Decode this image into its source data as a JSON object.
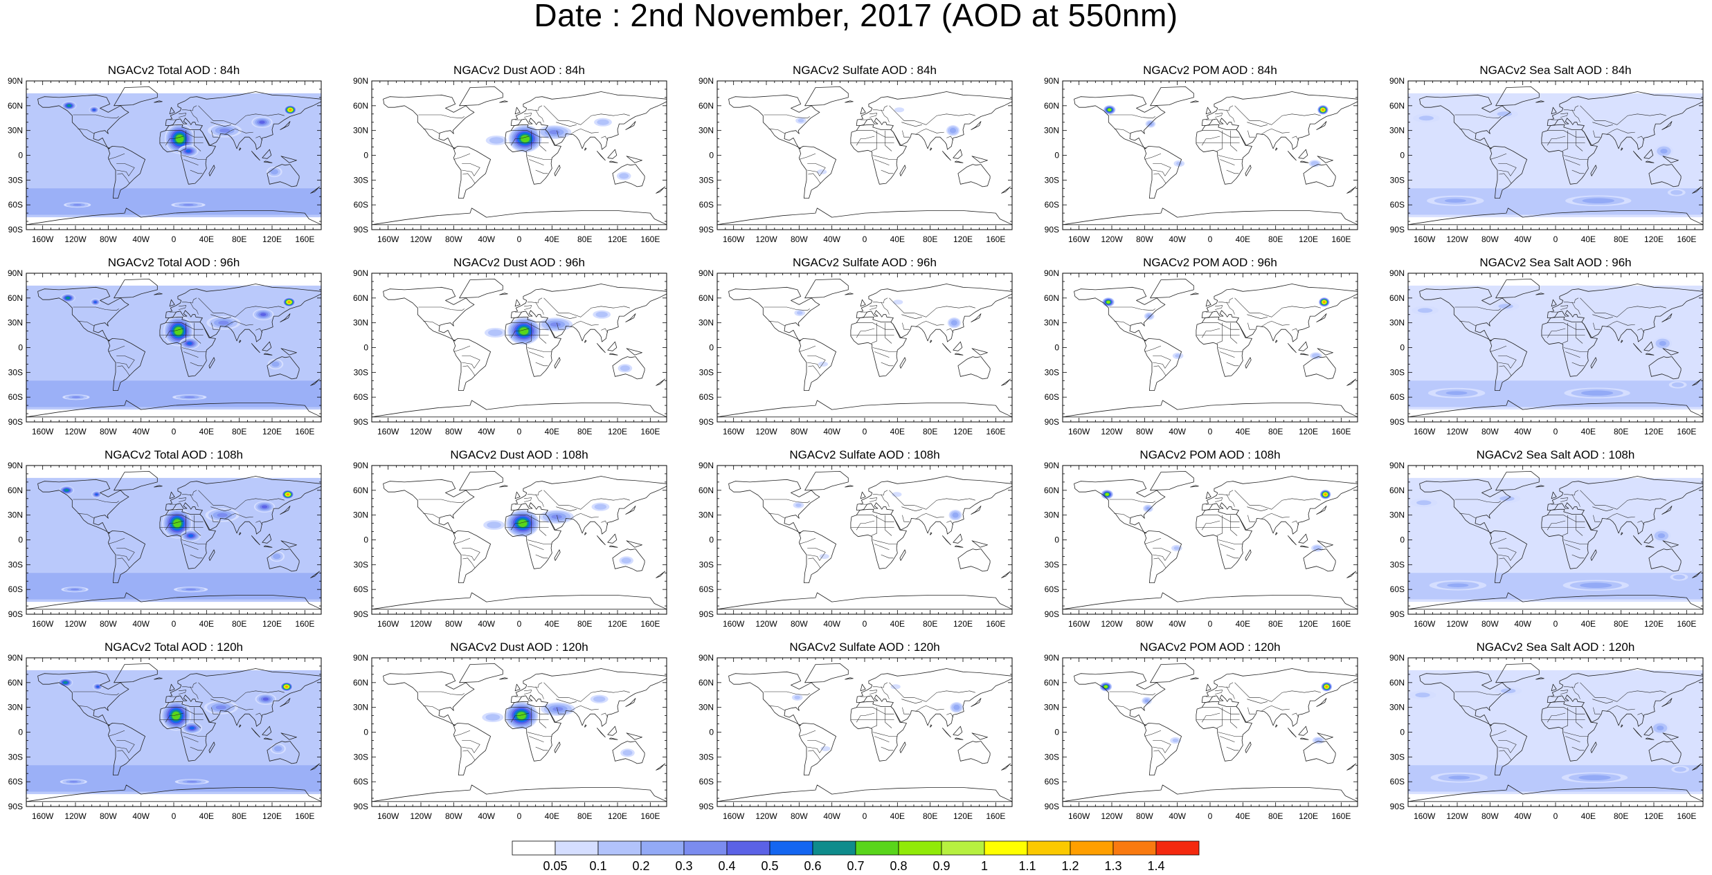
{
  "title": "Date : 2nd November, 2017 (AOD at 550nm)",
  "panel_titles": [
    [
      "NGACv2 Total AOD : 84h",
      "NGACv2 Dust AOD : 84h",
      "NGACv2 Sulfate AOD : 84h",
      "NGACv2 POM AOD : 84h",
      "NGACv2 Sea Salt AOD : 84h"
    ],
    [
      "NGACv2 Total AOD : 96h",
      "NGACv2 Dust AOD : 96h",
      "NGACv2 Sulfate AOD : 96h",
      "NGACv2 POM AOD : 96h",
      "NGACv2 Sea Salt AOD : 96h"
    ],
    [
      "NGACv2 Total AOD : 108h",
      "NGACv2 Dust AOD : 108h",
      "NGACv2 Sulfate AOD : 108h",
      "NGACv2 POM AOD : 108h",
      "NGACv2 Sea Salt AOD : 108h"
    ],
    [
      "NGACv2 Total AOD : 120h",
      "NGACv2 Dust AOD : 120h",
      "NGACv2 Sulfate AOD : 120h",
      "NGACv2 POM AOD : 120h",
      "NGACv2 Sea Salt  AOD : 120h"
    ]
  ],
  "lat_ticks": [
    "90N",
    "60N",
    "30N",
    "0",
    "30S",
    "60S",
    "90S"
  ],
  "lon_ticks": [
    "160W",
    "120W",
    "80W",
    "40W",
    "0",
    "40E",
    "80E",
    "120E",
    "160E"
  ],
  "colorbar": {
    "labels": [
      "0.05",
      "0.1",
      "0.2",
      "0.3",
      "0.4",
      "0.5",
      "0.6",
      "0.7",
      "0.8",
      "0.9",
      "1",
      "1.1",
      "1.2",
      "1.3",
      "1.4"
    ],
    "colors": [
      "#ffffff",
      "#d5deff",
      "#b2c3fb",
      "#93aaf6",
      "#7b8cef",
      "#5b62e6",
      "#1466f0",
      "#0f8c8c",
      "#59d51b",
      "#91ea08",
      "#b7f040",
      "#ffff00",
      "#fbc900",
      "#ff9f00",
      "#f97a10",
      "#f4290f"
    ]
  },
  "map_colors": {
    "coast": "#222222",
    "frame": "#000000"
  },
  "plumes": {
    "total": [
      {
        "lon": -130,
        "lat": 60,
        "v": 0.7,
        "rx": 10,
        "ry": 6
      },
      {
        "lon": -95,
        "lat": 55,
        "v": 0.55,
        "rx": 7,
        "ry": 5
      },
      {
        "lon": 5,
        "lat": 20,
        "v": 0.8,
        "rx": 20,
        "ry": 20
      },
      {
        "lon": 20,
        "lat": 5,
        "v": 0.55,
        "rx": 14,
        "ry": 8
      },
      {
        "lon": 60,
        "lat": 30,
        "v": 0.35,
        "rx": 25,
        "ry": 10
      },
      {
        "lon": 110,
        "lat": 40,
        "v": 0.45,
        "rx": 15,
        "ry": 8
      },
      {
        "lon": 140,
        "lat": 55,
        "v": 1.3,
        "rx": 8,
        "ry": 6
      },
      {
        "lon": 125,
        "lat": -20,
        "v": 0.3,
        "rx": 12,
        "ry": 8
      },
      {
        "lon": -120,
        "lat": -60,
        "v": 0.35,
        "rx": 20,
        "ry": 4
      },
      {
        "lon": 20,
        "lat": -60,
        "v": 0.35,
        "rx": 25,
        "ry": 4
      }
    ],
    "dust": [
      {
        "lon": 5,
        "lat": 20,
        "v": 0.8,
        "rx": 22,
        "ry": 18
      },
      {
        "lon": 45,
        "lat": 28,
        "v": 0.35,
        "rx": 25,
        "ry": 10
      },
      {
        "lon": -30,
        "lat": 18,
        "v": 0.2,
        "rx": 18,
        "ry": 8
      },
      {
        "lon": 130,
        "lat": -25,
        "v": 0.2,
        "rx": 12,
        "ry": 7
      },
      {
        "lon": 100,
        "lat": 40,
        "v": 0.2,
        "rx": 15,
        "ry": 7
      }
    ],
    "sulfate": [
      {
        "lon": -80,
        "lat": 42,
        "v": 0.15,
        "rx": 10,
        "ry": 6
      },
      {
        "lon": 110,
        "lat": 30,
        "v": 0.3,
        "rx": 10,
        "ry": 8
      },
      {
        "lon": 40,
        "lat": 55,
        "v": 0.12,
        "rx": 10,
        "ry": 5
      },
      {
        "lon": -50,
        "lat": -20,
        "v": 0.12,
        "rx": 10,
        "ry": 5
      }
    ],
    "pom": [
      {
        "lon": -125,
        "lat": 55,
        "v": 0.9,
        "rx": 8,
        "ry": 6
      },
      {
        "lon": 140,
        "lat": 55,
        "v": 1.3,
        "rx": 7,
        "ry": 6
      },
      {
        "lon": -75,
        "lat": 38,
        "v": 0.25,
        "rx": 8,
        "ry": 6
      },
      {
        "lon": 130,
        "lat": -10,
        "v": 0.2,
        "rx": 10,
        "ry": 6
      },
      {
        "lon": -40,
        "lat": -10,
        "v": 0.15,
        "rx": 10,
        "ry": 6
      }
    ],
    "seasalt": [
      {
        "lon": -160,
        "lat": 45,
        "v": 0.15,
        "rx": 25,
        "ry": 8
      },
      {
        "lon": -60,
        "lat": 50,
        "v": 0.15,
        "rx": 25,
        "ry": 8
      },
      {
        "lon": 130,
        "lat": 5,
        "v": 0.25,
        "rx": 15,
        "ry": 10
      },
      {
        "lon": -120,
        "lat": -55,
        "v": 0.25,
        "rx": 45,
        "ry": 8
      },
      {
        "lon": 50,
        "lat": -55,
        "v": 0.3,
        "rx": 50,
        "ry": 8
      },
      {
        "lon": 150,
        "lat": -45,
        "v": 0.2,
        "rx": 15,
        "ry": 6
      }
    ]
  },
  "continents": [
    [
      [
        -166,
        68
      ],
      [
        -158,
        71
      ],
      [
        -140,
        70
      ],
      [
        -125,
        71
      ],
      [
        -110,
        72
      ],
      [
        -95,
        73
      ],
      [
        -82,
        70
      ],
      [
        -78,
        62
      ],
      [
        -90,
        57
      ],
      [
        -80,
        52
      ],
      [
        -65,
        60
      ],
      [
        -60,
        55
      ],
      [
        -55,
        52
      ],
      [
        -66,
        45
      ],
      [
        -70,
        41
      ],
      [
        -76,
        35
      ],
      [
        -81,
        30
      ],
      [
        -80,
        26
      ],
      [
        -84,
        30
      ],
      [
        -90,
        29
      ],
      [
        -97,
        27
      ],
      [
        -98,
        20
      ],
      [
        -92,
        18
      ],
      [
        -87,
        21
      ],
      [
        -84,
        15
      ],
      [
        -80,
        8
      ],
      [
        -78,
        8
      ],
      [
        -85,
        12
      ],
      [
        -92,
        15
      ],
      [
        -105,
        20
      ],
      [
        -110,
        24
      ],
      [
        -115,
        31
      ],
      [
        -117,
        33
      ],
      [
        -124,
        40
      ],
      [
        -124,
        48
      ],
      [
        -130,
        54
      ],
      [
        -140,
        60
      ],
      [
        -152,
        58
      ],
      [
        -160,
        58
      ],
      [
        -165,
        62
      ]
    ],
    [
      [
        -80,
        8
      ],
      [
        -75,
        11
      ],
      [
        -62,
        10
      ],
      [
        -52,
        5
      ],
      [
        -35,
        -5
      ],
      [
        -38,
        -13
      ],
      [
        -41,
        -22
      ],
      [
        -48,
        -28
      ],
      [
        -58,
        -38
      ],
      [
        -65,
        -42
      ],
      [
        -68,
        -52
      ],
      [
        -74,
        -52
      ],
      [
        -73,
        -40
      ],
      [
        -71,
        -30
      ],
      [
        -71,
        -18
      ],
      [
        -77,
        -10
      ],
      [
        -80,
        -3
      ],
      [
        -78,
        2
      ]
    ],
    [
      [
        -10,
        36
      ],
      [
        -9,
        43
      ],
      [
        -2,
        44
      ],
      [
        -4,
        48
      ],
      [
        3,
        51
      ],
      [
        8,
        54
      ],
      [
        9,
        57
      ],
      [
        5,
        59
      ],
      [
        5,
        62
      ],
      [
        14,
        66
      ],
      [
        20,
        70
      ],
      [
        28,
        71
      ],
      [
        40,
        68
      ],
      [
        60,
        70
      ],
      [
        80,
        73
      ],
      [
        100,
        77
      ],
      [
        120,
        73
      ],
      [
        140,
        72
      ],
      [
        160,
        70
      ],
      [
        180,
        68
      ],
      [
        180,
        65
      ],
      [
        170,
        60
      ],
      [
        160,
        56
      ],
      [
        155,
        51
      ],
      [
        142,
        47
      ],
      [
        135,
        43
      ],
      [
        128,
        38
      ],
      [
        122,
        38
      ],
      [
        120,
        31
      ],
      [
        121,
        25
      ],
      [
        113,
        22
      ],
      [
        108,
        21
      ],
      [
        106,
        11
      ],
      [
        101,
        7
      ],
      [
        100,
        13
      ],
      [
        98,
        16
      ],
      [
        92,
        22
      ],
      [
        87,
        22
      ],
      [
        80,
        15
      ],
      [
        77,
        8
      ],
      [
        73,
        18
      ],
      [
        70,
        22
      ],
      [
        66,
        25
      ],
      [
        57,
        26
      ],
      [
        56,
        22
      ],
      [
        52,
        16
      ],
      [
        44,
        12
      ],
      [
        43,
        14
      ],
      [
        35,
        28
      ],
      [
        32,
        31
      ],
      [
        35,
        36
      ],
      [
        27,
        37
      ],
      [
        26,
        40
      ],
      [
        23,
        40
      ],
      [
        21,
        37
      ],
      [
        19,
        40
      ],
      [
        14,
        45
      ],
      [
        12,
        41
      ],
      [
        16,
        38
      ],
      [
        12,
        38
      ],
      [
        8,
        44
      ],
      [
        3,
        43
      ],
      [
        -1,
        37
      ],
      [
        -5,
        36
      ]
    ],
    [
      [
        -17,
        21
      ],
      [
        -16,
        28
      ],
      [
        -10,
        30
      ],
      [
        -6,
        36
      ],
      [
        5,
        37
      ],
      [
        11,
        37
      ],
      [
        10,
        34
      ],
      [
        20,
        31
      ],
      [
        32,
        31
      ],
      [
        35,
        28
      ],
      [
        43,
        12
      ],
      [
        51,
        11
      ],
      [
        47,
        3
      ],
      [
        40,
        -3
      ],
      [
        39,
        -10
      ],
      [
        40,
        -16
      ],
      [
        35,
        -24
      ],
      [
        32,
        -28
      ],
      [
        26,
        -34
      ],
      [
        18,
        -35
      ],
      [
        15,
        -25
      ],
      [
        12,
        -13
      ],
      [
        9,
        -1
      ],
      [
        9,
        4
      ],
      [
        4,
        6
      ],
      [
        -8,
        4
      ],
      [
        -13,
        8
      ],
      [
        -17,
        14
      ]
    ],
    [
      [
        114,
        -22
      ],
      [
        117,
        -35
      ],
      [
        130,
        -32
      ],
      [
        138,
        -35
      ],
      [
        144,
        -38
      ],
      [
        150,
        -37
      ],
      [
        153,
        -28
      ],
      [
        153,
        -25
      ],
      [
        145,
        -15
      ],
      [
        142,
        -11
      ],
      [
        136,
        -12
      ],
      [
        132,
        -11
      ],
      [
        125,
        -14
      ],
      [
        114,
        -22
      ]
    ],
    [
      [
        -73,
        60
      ],
      [
        -60,
        82
      ],
      [
        -30,
        83
      ],
      [
        -20,
        75
      ],
      [
        -20,
        70
      ],
      [
        -40,
        65
      ],
      [
        -50,
        61
      ]
    ],
    [
      [
        -180,
        -84
      ],
      [
        -140,
        -78
      ],
      [
        -100,
        -73
      ],
      [
        -60,
        -70
      ],
      [
        -58,
        -64
      ],
      [
        -40,
        -75
      ],
      [
        0,
        -70
      ],
      [
        40,
        -68
      ],
      [
        80,
        -67
      ],
      [
        120,
        -67
      ],
      [
        160,
        -70
      ],
      [
        165,
        -77
      ],
      [
        180,
        -84
      ]
    ],
    [
      [
        95,
        5
      ],
      [
        105,
        -6
      ],
      [
        100,
        -1
      ]
    ],
    [
      [
        110,
        -8
      ],
      [
        120,
        -9
      ],
      [
        112,
        -7
      ]
    ],
    [
      [
        108,
        -3
      ],
      [
        117,
        7
      ],
      [
        119,
        0
      ],
      [
        114,
        -4
      ]
    ],
    [
      [
        131,
        -1
      ],
      [
        150,
        -6
      ],
      [
        141,
        -9
      ]
    ],
    [
      [
        44,
        -25
      ],
      [
        50,
        -15
      ],
      [
        49,
        -12
      ],
      [
        43,
        -22
      ]
    ],
    [
      [
        -5,
        50
      ],
      [
        -3,
        58
      ],
      [
        1,
        52
      ]
    ],
    [
      [
        130,
        31
      ],
      [
        140,
        36
      ],
      [
        142,
        41
      ],
      [
        135,
        34
      ]
    ],
    [
      [
        -24,
        64
      ],
      [
        -14,
        65
      ],
      [
        -18,
        66
      ]
    ],
    [
      [
        80,
        6
      ],
      [
        82,
        8
      ],
      [
        81,
        9
      ],
      [
        80,
        7
      ]
    ],
    [
      [
        167,
        -46
      ],
      [
        174,
        -41
      ],
      [
        178,
        -38
      ],
      [
        172,
        -44
      ]
    ]
  ],
  "borders": [
    [
      [
        -123,
        49
      ],
      [
        -95,
        49
      ],
      [
        -83,
        46
      ],
      [
        -70,
        45
      ],
      [
        -67,
        47
      ]
    ],
    [
      [
        -117,
        32
      ],
      [
        -106,
        31
      ],
      [
        -97,
        26
      ]
    ],
    [
      [
        -10,
        30
      ],
      [
        10,
        30
      ],
      [
        25,
        22
      ],
      [
        36,
        22
      ]
    ],
    [
      [
        -17,
        15
      ],
      [
        5,
        15
      ],
      [
        24,
        15
      ],
      [
        36,
        15
      ]
    ],
    [
      [
        -10,
        12
      ],
      [
        -5,
        20
      ],
      [
        0,
        20
      ],
      [
        12,
        23
      ]
    ],
    [
      [
        10,
        0
      ],
      [
        30,
        -5
      ],
      [
        40,
        -5
      ]
    ],
    [
      [
        12,
        -5
      ],
      [
        25,
        -10
      ],
      [
        30,
        -12
      ]
    ],
    [
      [
        20,
        -18
      ],
      [
        30,
        -22
      ],
      [
        35,
        -22
      ]
    ],
    [
      [
        15,
        30
      ],
      [
        15,
        8
      ],
      [
        8,
        5
      ]
    ],
    [
      [
        25,
        30
      ],
      [
        25,
        12
      ],
      [
        33,
        5
      ]
    ],
    [
      [
        20,
        55
      ],
      [
        24,
        48
      ],
      [
        28,
        45
      ],
      [
        30,
        40
      ]
    ],
    [
      [
        30,
        60
      ],
      [
        40,
        50
      ],
      [
        48,
        42
      ],
      [
        60,
        42
      ],
      [
        75,
        37
      ],
      [
        88,
        48
      ],
      [
        100,
        50
      ],
      [
        115,
        48
      ],
      [
        128,
        50
      ],
      [
        135,
        48
      ]
    ],
    [
      [
        45,
        40
      ],
      [
        55,
        37
      ],
      [
        62,
        35
      ],
      [
        70,
        37
      ]
    ],
    [
      [
        62,
        25
      ],
      [
        70,
        30
      ],
      [
        75,
        32
      ],
      [
        80,
        30
      ],
      [
        88,
        27
      ],
      [
        97,
        28
      ]
    ],
    [
      [
        46,
        30
      ],
      [
        48,
        22
      ],
      [
        55,
        22
      ]
    ],
    [
      [
        100,
        21
      ],
      [
        105,
        23
      ],
      [
        108,
        18
      ]
    ],
    [
      [
        -70,
        -18
      ],
      [
        -58,
        -20
      ],
      [
        -55,
        -25
      ],
      [
        -48,
        -15
      ],
      [
        -60,
        -10
      ],
      [
        -70,
        -10
      ]
    ],
    [
      [
        -80,
        -5
      ],
      [
        -70,
        -2
      ],
      [
        -60,
        2
      ]
    ],
    [
      [
        -69,
        -23
      ],
      [
        -63,
        -22
      ],
      [
        -58,
        -28
      ],
      [
        -54,
        -34
      ]
    ],
    [
      [
        6,
        50
      ],
      [
        15,
        51
      ],
      [
        14,
        48
      ],
      [
        10,
        47
      ],
      [
        6,
        46
      ]
    ],
    [
      [
        10,
        55
      ],
      [
        15,
        55
      ],
      [
        23,
        54
      ],
      [
        24,
        58
      ],
      [
        28,
        60
      ]
    ],
    [
      [
        -5,
        43
      ],
      [
        3,
        43
      ],
      [
        7,
        44
      ]
    ]
  ]
}
